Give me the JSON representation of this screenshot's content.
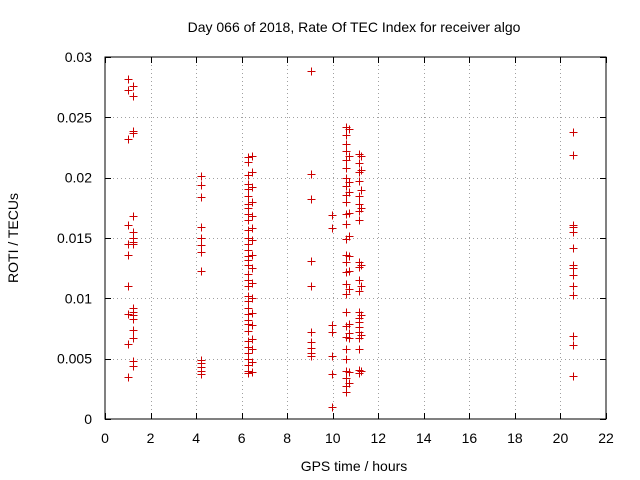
{
  "chart_data": {
    "type": "scatter",
    "title": "Day 066 of 2018, Rate Of TEC Index for receiver algo",
    "xlabel": "GPS time / hours",
    "ylabel": "ROTI / TECUs",
    "xlim": [
      0,
      22
    ],
    "ylim": [
      0,
      0.03
    ],
    "x_ticks": [
      0,
      2,
      4,
      6,
      8,
      10,
      12,
      14,
      16,
      18,
      20,
      22
    ],
    "x_tick_labels": [
      "0",
      "2",
      "4",
      "6",
      "8",
      "10",
      "12",
      "14",
      "16",
      "18",
      "20",
      "22"
    ],
    "y_ticks": [
      0,
      0.005,
      0.01,
      0.015,
      0.02,
      0.025,
      0.03
    ],
    "y_tick_labels": [
      "0",
      "0.005",
      "0.01",
      "0.015",
      "0.02",
      "0.025",
      "0.03"
    ],
    "grid": true,
    "marker": "+",
    "marker_color": "#cc0000",
    "grid_color": "#a0a0a0",
    "axis_color": "#000000",
    "points": [
      {
        "x": 1.0,
        "y": 0.0282
      },
      {
        "x": 1.0,
        "y": 0.0273
      },
      {
        "x": 1.0,
        "y": 0.0232
      },
      {
        "x": 1.0,
        "y": 0.0161
      },
      {
        "x": 1.0,
        "y": 0.0145
      },
      {
        "x": 1.0,
        "y": 0.0136
      },
      {
        "x": 1.0,
        "y": 0.011
      },
      {
        "x": 1.0,
        "y": 0.0087
      },
      {
        "x": 1.0,
        "y": 0.0062
      },
      {
        "x": 1.0,
        "y": 0.0035
      },
      {
        "x": 1.25,
        "y": 0.0276
      },
      {
        "x": 1.25,
        "y": 0.0268
      },
      {
        "x": 1.25,
        "y": 0.0239
      },
      {
        "x": 1.25,
        "y": 0.0237
      },
      {
        "x": 1.25,
        "y": 0.0168
      },
      {
        "x": 1.25,
        "y": 0.0155
      },
      {
        "x": 1.25,
        "y": 0.015
      },
      {
        "x": 1.25,
        "y": 0.0147
      },
      {
        "x": 1.25,
        "y": 0.0145
      },
      {
        "x": 1.25,
        "y": 0.0092
      },
      {
        "x": 1.25,
        "y": 0.0089
      },
      {
        "x": 1.25,
        "y": 0.0086
      },
      {
        "x": 1.25,
        "y": 0.0083
      },
      {
        "x": 1.25,
        "y": 0.0074
      },
      {
        "x": 1.25,
        "y": 0.0067
      },
      {
        "x": 1.25,
        "y": 0.0048
      },
      {
        "x": 1.25,
        "y": 0.0044
      },
      {
        "x": 4.2,
        "y": 0.0201
      },
      {
        "x": 4.2,
        "y": 0.0194
      },
      {
        "x": 4.2,
        "y": 0.0184
      },
      {
        "x": 4.2,
        "y": 0.0159
      },
      {
        "x": 4.2,
        "y": 0.015
      },
      {
        "x": 4.2,
        "y": 0.0144
      },
      {
        "x": 4.2,
        "y": 0.0138
      },
      {
        "x": 4.2,
        "y": 0.0123
      },
      {
        "x": 4.2,
        "y": 0.0049
      },
      {
        "x": 4.2,
        "y": 0.0046
      },
      {
        "x": 4.2,
        "y": 0.0043
      },
      {
        "x": 4.2,
        "y": 0.004
      },
      {
        "x": 4.2,
        "y": 0.0037
      },
      {
        "x": 6.3,
        "y": 0.0217
      },
      {
        "x": 6.3,
        "y": 0.0213
      },
      {
        "x": 6.3,
        "y": 0.0202
      },
      {
        "x": 6.3,
        "y": 0.0195
      },
      {
        "x": 6.3,
        "y": 0.0191
      },
      {
        "x": 6.3,
        "y": 0.0185
      },
      {
        "x": 6.3,
        "y": 0.0178
      },
      {
        "x": 6.3,
        "y": 0.0175
      },
      {
        "x": 6.3,
        "y": 0.017
      },
      {
        "x": 6.3,
        "y": 0.0165
      },
      {
        "x": 6.3,
        "y": 0.0157
      },
      {
        "x": 6.3,
        "y": 0.015
      },
      {
        "x": 6.3,
        "y": 0.0145
      },
      {
        "x": 6.3,
        "y": 0.014
      },
      {
        "x": 6.3,
        "y": 0.0135
      },
      {
        "x": 6.3,
        "y": 0.0132
      },
      {
        "x": 6.3,
        "y": 0.0128
      },
      {
        "x": 6.3,
        "y": 0.012
      },
      {
        "x": 6.3,
        "y": 0.0115
      },
      {
        "x": 6.3,
        "y": 0.011
      },
      {
        "x": 6.3,
        "y": 0.0102
      },
      {
        "x": 6.3,
        "y": 0.0098
      },
      {
        "x": 6.3,
        "y": 0.0092
      },
      {
        "x": 6.3,
        "y": 0.0087
      },
      {
        "x": 6.3,
        "y": 0.0082
      },
      {
        "x": 6.3,
        "y": 0.0079
      },
      {
        "x": 6.3,
        "y": 0.0073
      },
      {
        "x": 6.3,
        "y": 0.0065
      },
      {
        "x": 6.3,
        "y": 0.006
      },
      {
        "x": 6.3,
        "y": 0.0055
      },
      {
        "x": 6.3,
        "y": 0.005
      },
      {
        "x": 6.3,
        "y": 0.0045
      },
      {
        "x": 6.3,
        "y": 0.004
      },
      {
        "x": 6.3,
        "y": 0.0038
      },
      {
        "x": 6.45,
        "y": 0.0218
      },
      {
        "x": 6.45,
        "y": 0.0205
      },
      {
        "x": 6.45,
        "y": 0.0192
      },
      {
        "x": 6.45,
        "y": 0.018
      },
      {
        "x": 6.45,
        "y": 0.0168
      },
      {
        "x": 6.45,
        "y": 0.0158
      },
      {
        "x": 6.45,
        "y": 0.0148
      },
      {
        "x": 6.45,
        "y": 0.0136
      },
      {
        "x": 6.45,
        "y": 0.0125
      },
      {
        "x": 6.45,
        "y": 0.0113
      },
      {
        "x": 6.45,
        "y": 0.01
      },
      {
        "x": 6.45,
        "y": 0.0088
      },
      {
        "x": 6.45,
        "y": 0.0078
      },
      {
        "x": 6.45,
        "y": 0.0066
      },
      {
        "x": 6.45,
        "y": 0.0058
      },
      {
        "x": 6.45,
        "y": 0.0047
      },
      {
        "x": 6.45,
        "y": 0.0039
      },
      {
        "x": 9.05,
        "y": 0.0288
      },
      {
        "x": 9.05,
        "y": 0.0203
      },
      {
        "x": 9.05,
        "y": 0.0182
      },
      {
        "x": 9.05,
        "y": 0.0131
      },
      {
        "x": 9.05,
        "y": 0.011
      },
      {
        "x": 9.05,
        "y": 0.0072
      },
      {
        "x": 9.05,
        "y": 0.0064
      },
      {
        "x": 9.05,
        "y": 0.0059
      },
      {
        "x": 9.05,
        "y": 0.0055
      },
      {
        "x": 9.05,
        "y": 0.0052
      },
      {
        "x": 9.95,
        "y": 0.0169
      },
      {
        "x": 9.95,
        "y": 0.0158
      },
      {
        "x": 9.95,
        "y": 0.0078
      },
      {
        "x": 9.95,
        "y": 0.0072
      },
      {
        "x": 9.95,
        "y": 0.0052
      },
      {
        "x": 9.95,
        "y": 0.0037
      },
      {
        "x": 9.95,
        "y": 0.001
      },
      {
        "x": 10.6,
        "y": 0.0242
      },
      {
        "x": 10.6,
        "y": 0.0235
      },
      {
        "x": 10.6,
        "y": 0.0228
      },
      {
        "x": 10.6,
        "y": 0.0222
      },
      {
        "x": 10.6,
        "y": 0.0215
      },
      {
        "x": 10.6,
        "y": 0.0208
      },
      {
        "x": 10.6,
        "y": 0.02
      },
      {
        "x": 10.6,
        "y": 0.0193
      },
      {
        "x": 10.6,
        "y": 0.0186
      },
      {
        "x": 10.6,
        "y": 0.018
      },
      {
        "x": 10.6,
        "y": 0.017
      },
      {
        "x": 10.6,
        "y": 0.0162
      },
      {
        "x": 10.6,
        "y": 0.0149
      },
      {
        "x": 10.6,
        "y": 0.0136
      },
      {
        "x": 10.6,
        "y": 0.013
      },
      {
        "x": 10.6,
        "y": 0.0122
      },
      {
        "x": 10.6,
        "y": 0.0112
      },
      {
        "x": 10.6,
        "y": 0.0104
      },
      {
        "x": 10.6,
        "y": 0.0089
      },
      {
        "x": 10.6,
        "y": 0.0077
      },
      {
        "x": 10.6,
        "y": 0.0068
      },
      {
        "x": 10.6,
        "y": 0.0058
      },
      {
        "x": 10.6,
        "y": 0.005
      },
      {
        "x": 10.6,
        "y": 0.004
      },
      {
        "x": 10.6,
        "y": 0.0034
      },
      {
        "x": 10.6,
        "y": 0.0027
      },
      {
        "x": 10.6,
        "y": 0.0022
      },
      {
        "x": 10.7,
        "y": 0.024
      },
      {
        "x": 10.7,
        "y": 0.0218
      },
      {
        "x": 10.7,
        "y": 0.0196
      },
      {
        "x": 10.7,
        "y": 0.0188
      },
      {
        "x": 10.7,
        "y": 0.0171
      },
      {
        "x": 10.7,
        "y": 0.0152
      },
      {
        "x": 10.7,
        "y": 0.0135
      },
      {
        "x": 10.7,
        "y": 0.0123
      },
      {
        "x": 10.7,
        "y": 0.0108
      },
      {
        "x": 10.7,
        "y": 0.0079
      },
      {
        "x": 10.7,
        "y": 0.0071
      },
      {
        "x": 10.7,
        "y": 0.0067
      },
      {
        "x": 10.7,
        "y": 0.0039
      },
      {
        "x": 10.7,
        "y": 0.003
      },
      {
        "x": 11.15,
        "y": 0.022
      },
      {
        "x": 11.15,
        "y": 0.0212
      },
      {
        "x": 11.15,
        "y": 0.0205
      },
      {
        "x": 11.15,
        "y": 0.0197
      },
      {
        "x": 11.15,
        "y": 0.0185
      },
      {
        "x": 11.15,
        "y": 0.0178
      },
      {
        "x": 11.15,
        "y": 0.0172
      },
      {
        "x": 11.15,
        "y": 0.0165
      },
      {
        "x": 11.15,
        "y": 0.013
      },
      {
        "x": 11.15,
        "y": 0.0126
      },
      {
        "x": 11.15,
        "y": 0.0115
      },
      {
        "x": 11.15,
        "y": 0.0106
      },
      {
        "x": 11.15,
        "y": 0.0089
      },
      {
        "x": 11.15,
        "y": 0.0084
      },
      {
        "x": 11.15,
        "y": 0.008
      },
      {
        "x": 11.15,
        "y": 0.0076
      },
      {
        "x": 11.15,
        "y": 0.0072
      },
      {
        "x": 11.15,
        "y": 0.0067
      },
      {
        "x": 11.15,
        "y": 0.0058
      },
      {
        "x": 11.15,
        "y": 0.0041
      },
      {
        "x": 11.15,
        "y": 0.0038
      },
      {
        "x": 11.25,
        "y": 0.0218
      },
      {
        "x": 11.25,
        "y": 0.0206
      },
      {
        "x": 11.25,
        "y": 0.019
      },
      {
        "x": 11.25,
        "y": 0.0175
      },
      {
        "x": 11.25,
        "y": 0.0128
      },
      {
        "x": 11.25,
        "y": 0.011
      },
      {
        "x": 11.25,
        "y": 0.0086
      },
      {
        "x": 11.25,
        "y": 0.007
      },
      {
        "x": 11.25,
        "y": 0.004
      },
      {
        "x": 20.55,
        "y": 0.0238
      },
      {
        "x": 20.55,
        "y": 0.0219
      },
      {
        "x": 20.55,
        "y": 0.0161
      },
      {
        "x": 20.55,
        "y": 0.0159
      },
      {
        "x": 20.55,
        "y": 0.0155
      },
      {
        "x": 20.55,
        "y": 0.0142
      },
      {
        "x": 20.55,
        "y": 0.0128
      },
      {
        "x": 20.55,
        "y": 0.0125
      },
      {
        "x": 20.55,
        "y": 0.0119
      },
      {
        "x": 20.55,
        "y": 0.011
      },
      {
        "x": 20.55,
        "y": 0.0103
      },
      {
        "x": 20.55,
        "y": 0.0069
      },
      {
        "x": 20.55,
        "y": 0.0061
      },
      {
        "x": 20.55,
        "y": 0.0036
      }
    ]
  }
}
